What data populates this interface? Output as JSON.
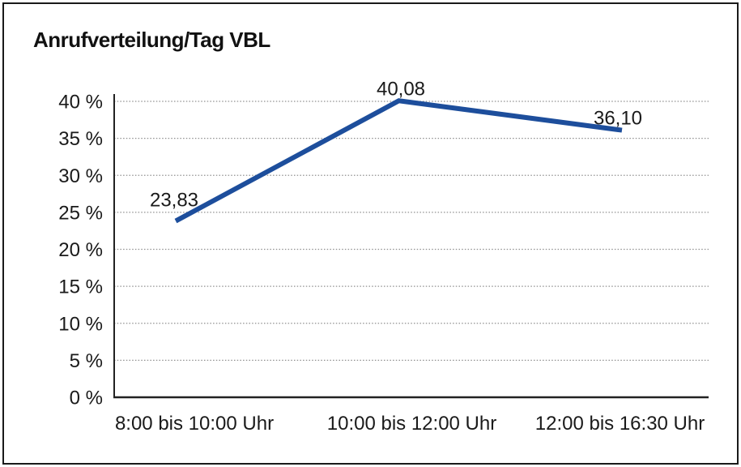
{
  "title": "Anrufverteilung/Tag VBL",
  "chart_data": {
    "type": "line",
    "title": "Anrufverteilung/Tag VBL",
    "categories": [
      "8:00 bis 10:00 Uhr",
      "10:00 bis 12:00 Uhr",
      "12:00 bis 16:30 Uhr"
    ],
    "values": [
      23.83,
      40.08,
      36.1
    ],
    "point_labels": [
      "23,83",
      "40,08",
      "36,10"
    ],
    "y_ticks": [
      0,
      5,
      10,
      15,
      20,
      25,
      30,
      35,
      40
    ],
    "y_tick_labels": [
      "0 %",
      "5 %",
      "10 %",
      "15 %",
      "20 %",
      "25 %",
      "30 %",
      "35 %",
      "40 %"
    ],
    "ylim": [
      0,
      40
    ],
    "xlabel": "",
    "ylabel": "",
    "grid": "horizontal-dotted",
    "legend": "none",
    "line_color": "#1d4e9c",
    "grid_color": "#909090",
    "axis_color": "#222222",
    "text_color": "#1a1a1a",
    "background_color": "#ffffff",
    "frame_color": "#1a1a1a"
  }
}
